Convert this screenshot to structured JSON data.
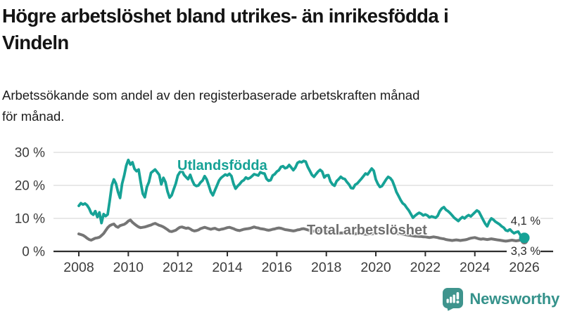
{
  "header": {
    "title": "Högre arbetslöshet bland utrikes- än inrikesfödda i\nVindeln",
    "subtitle": "Arbetssökande som andel av den registerbaserade arbetskraften månad\nför månad."
  },
  "footer": {
    "brand": "Newsworthy",
    "logo_icon": "bar-chart-exclamation-bubble"
  },
  "colors": {
    "series_teal": "#16a296",
    "series_gray": "#757575",
    "grid": "#d9d9d9",
    "axis": "#2e2e2e",
    "tick_text": "#3c3c3c",
    "logo_teal": "#3f948d"
  },
  "chart_data": {
    "type": "line",
    "unit": "%",
    "grid": "horizontal",
    "legend_position": "inline-labels",
    "xlim": [
      2008,
      2026.05
    ],
    "ylim": [
      0,
      30
    ],
    "x_start": 2008.0,
    "x_step_months": 1,
    "x_ticks": [
      {
        "v": 2008,
        "label": "2008"
      },
      {
        "v": 2010,
        "label": "2010"
      },
      {
        "v": 2012,
        "label": "2012"
      },
      {
        "v": 2014,
        "label": "2014"
      },
      {
        "v": 2016,
        "label": "2016"
      },
      {
        "v": 2018,
        "label": "2018"
      },
      {
        "v": 2020,
        "label": "2020"
      },
      {
        "v": 2022,
        "label": "2022"
      },
      {
        "v": 2024,
        "label": "2024"
      },
      {
        "v": 2026,
        "label": "2026"
      }
    ],
    "y_ticks": [
      {
        "v": 0,
        "label": "0 %"
      },
      {
        "v": 10,
        "label": "10 %"
      },
      {
        "v": 20,
        "label": "20 %"
      },
      {
        "v": 30,
        "label": "30 %"
      }
    ],
    "series": [
      {
        "id": "utlandsfodda",
        "name": "Utlandsfödda",
        "color": "#16a296",
        "end_label": "4,1 %",
        "end_value": 4.1,
        "values": [
          13.8,
          14.6,
          14.2,
          14.5,
          14.0,
          13.0,
          11.6,
          11.1,
          12.2,
          10.4,
          11.8,
          8.6,
          11.3,
          10.7,
          11.2,
          15.5,
          20.0,
          21.8,
          20.5,
          18.0,
          16.2,
          20.5,
          23.0,
          26.0,
          27.7,
          26.3,
          27.0,
          25.0,
          24.3,
          24.8,
          21.0,
          17.5,
          16.4,
          19.5,
          21.0,
          23.8,
          24.3,
          24.8,
          24.0,
          23.2,
          20.3,
          22.3,
          21.0,
          18.2,
          16.3,
          17.0,
          18.8,
          20.5,
          23.0,
          24.0,
          24.5,
          23.2,
          22.5,
          21.9,
          23.2,
          21.5,
          20.2,
          19.8,
          20.0,
          20.9,
          21.5,
          22.8,
          21.8,
          20.0,
          18.0,
          17.0,
          18.5,
          20.0,
          21.5,
          22.3,
          22.8,
          23.3,
          23.0,
          23.5,
          22.8,
          20.5,
          19.0,
          19.8,
          20.4,
          21.2,
          21.6,
          22.4,
          22.0,
          22.3,
          22.8,
          23.4,
          23.2,
          23.0,
          24.0,
          23.7,
          23.6,
          22.0,
          21.4,
          21.6,
          23.0,
          23.4,
          24.2,
          24.6,
          25.6,
          25.8,
          25.2,
          25.4,
          26.2,
          25.4,
          24.6,
          25.4,
          26.8,
          27.2,
          27.0,
          27.4,
          27.2,
          25.6,
          24.4,
          23.2,
          22.6,
          23.4,
          24.2,
          24.7,
          24.2,
          22.4,
          23.0,
          23.1,
          21.2,
          20.3,
          19.9,
          21.3,
          21.9,
          22.6,
          22.1,
          21.9,
          21.0,
          20.3,
          19.2,
          19.1,
          20.2,
          20.6,
          21.3,
          22.0,
          22.8,
          23.6,
          23.3,
          24.2,
          25.1,
          24.4,
          21.8,
          20.4,
          19.5,
          19.8,
          20.8,
          21.8,
          22.6,
          22.2,
          21.4,
          19.8,
          18.0,
          16.8,
          15.6,
          14.6,
          14.1,
          13.2,
          12.4,
          11.3,
          10.2,
          10.8,
          11.3,
          11.7,
          11.4,
          10.9,
          11.2,
          10.9,
          10.3,
          10.6,
          10.4,
          10.2,
          10.8,
          12.2,
          13.0,
          13.4,
          12.6,
          12.2,
          11.6,
          10.9,
          10.2,
          9.7,
          9.2,
          9.9,
          10.4,
          10.0,
          10.6,
          11.0,
          10.6,
          11.2,
          11.8,
          12.4,
          12.0,
          10.8,
          9.6,
          8.4,
          7.6,
          9.0,
          10.0,
          9.6,
          9.0,
          8.6,
          8.2,
          7.6,
          7.2,
          6.4,
          6.2,
          6.7,
          6.0,
          5.5,
          5.8,
          6.0,
          5.0,
          4.5,
          4.1
        ]
      },
      {
        "id": "total",
        "name": "Total arbetslöshet",
        "color": "#757575",
        "end_label": "3,3 %",
        "end_value": 3.3,
        "values": [
          5.3,
          5.1,
          4.9,
          4.5,
          4.0,
          3.6,
          3.4,
          3.7,
          4.0,
          4.1,
          4.3,
          4.8,
          5.4,
          6.3,
          7.2,
          7.8,
          8.1,
          8.3,
          7.6,
          7.3,
          7.8,
          8.0,
          8.2,
          8.6,
          9.2,
          9.5,
          8.8,
          8.3,
          7.8,
          7.4,
          7.2,
          7.3,
          7.4,
          7.6,
          7.8,
          8.0,
          8.3,
          8.5,
          8.2,
          7.9,
          7.7,
          7.4,
          7.0,
          6.6,
          6.1,
          6.0,
          6.2,
          6.4,
          6.9,
          7.3,
          7.4,
          7.2,
          7.0,
          7.1,
          6.8,
          6.4,
          6.2,
          6.3,
          6.5,
          6.9,
          7.1,
          7.3,
          7.1,
          6.9,
          6.7,
          6.9,
          7.0,
          6.7,
          6.5,
          6.7,
          6.8,
          7.0,
          7.2,
          7.3,
          7.1,
          6.9,
          6.6,
          6.4,
          6.3,
          6.5,
          6.7,
          6.8,
          6.9,
          7.0,
          7.2,
          7.4,
          7.2,
          7.1,
          6.9,
          6.8,
          6.7,
          6.5,
          6.4,
          6.5,
          6.7,
          6.8,
          7.0,
          7.1,
          7.0,
          6.8,
          6.6,
          6.5,
          6.4,
          6.3,
          6.2,
          6.3,
          6.5,
          6.6,
          6.8,
          6.9,
          6.7,
          6.5,
          6.3,
          6.2,
          6.1,
          6.2,
          6.3,
          6.4,
          6.3,
          6.2,
          6.1,
          6.0,
          5.9,
          5.7,
          5.6,
          5.5,
          5.5,
          5.6,
          5.6,
          5.5,
          5.5,
          5.4,
          5.4,
          5.3,
          5.3,
          5.4,
          5.4,
          5.3,
          5.3,
          5.2,
          5.2,
          5.3,
          5.3,
          5.4,
          5.4,
          5.5,
          5.6,
          5.8,
          5.8,
          5.9,
          5.9,
          5.8,
          5.7,
          5.6,
          5.5,
          5.4,
          5.3,
          5.2,
          5.1,
          5.0,
          4.9,
          4.8,
          4.7,
          4.6,
          4.6,
          4.5,
          4.5,
          4.4,
          4.4,
          4.3,
          4.2,
          4.3,
          4.4,
          4.3,
          4.2,
          4.0,
          3.9,
          3.8,
          3.6,
          3.5,
          3.4,
          3.3,
          3.4,
          3.5,
          3.4,
          3.3,
          3.4,
          3.5,
          3.6,
          3.8,
          4.0,
          4.1,
          4.2,
          4.0,
          3.8,
          3.7,
          3.8,
          3.7,
          3.6,
          3.7,
          3.8,
          3.7,
          3.6,
          3.5,
          3.4,
          3.3,
          3.2,
          3.1,
          3.2,
          3.3,
          3.4,
          3.3,
          3.2,
          3.3,
          3.4,
          3.3,
          3.3
        ]
      }
    ]
  }
}
